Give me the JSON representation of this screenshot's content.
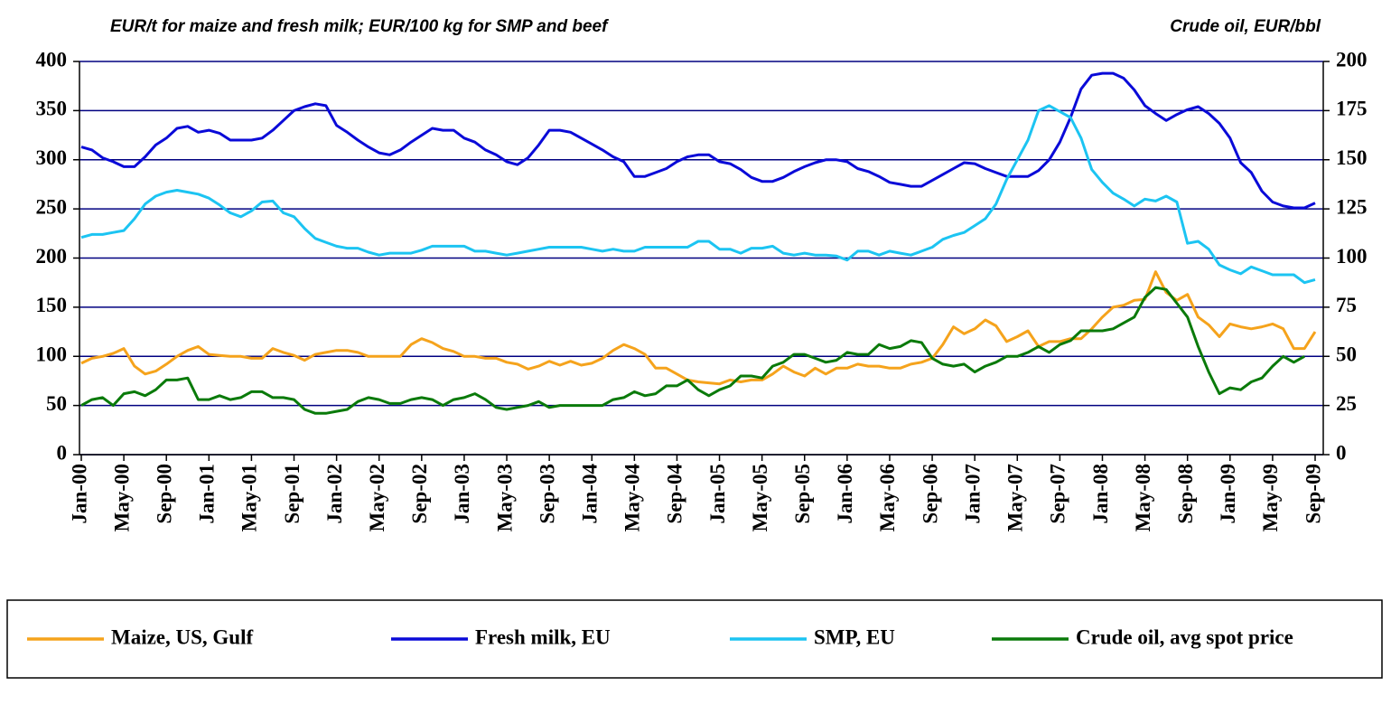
{
  "chart_data": {
    "type": "line",
    "left_axis_label": "EUR/t for maize and fresh milk; EUR/100 kg for SMP and beef",
    "right_axis_label": "Crude oil, EUR/bbl",
    "categories": [
      "Jan-00",
      null,
      null,
      null,
      "May-00",
      null,
      null,
      null,
      "Sep-00",
      null,
      null,
      null,
      "Jan-01",
      null,
      null,
      null,
      "May-01",
      null,
      null,
      null,
      "Sep-01",
      null,
      null,
      null,
      "Jan-02",
      null,
      null,
      null,
      "May-02",
      null,
      null,
      null,
      "Sep-02",
      null,
      null,
      null,
      "Jan-03",
      null,
      null,
      null,
      "May-03",
      null,
      null,
      null,
      "Sep-03",
      null,
      null,
      null,
      "Jan-04",
      null,
      null,
      null,
      "May-04",
      null,
      null,
      null,
      "Sep-04",
      null,
      null,
      null,
      "Jan-05",
      null,
      null,
      null,
      "May-05",
      null,
      null,
      null,
      "Sep-05",
      null,
      null,
      null,
      "Jan-06",
      null,
      null,
      null,
      "May-06",
      null,
      null,
      null,
      "Sep-06",
      null,
      null,
      null,
      "Jan-07",
      null,
      null,
      null,
      "May-07",
      null,
      null,
      null,
      "Sep-07",
      null,
      null,
      null,
      "Jan-08",
      null,
      null,
      null,
      "May-08",
      null,
      null,
      null,
      "Sep-08",
      null,
      null,
      null,
      "Jan-09",
      null,
      null,
      null,
      "May-09",
      null,
      null,
      null,
      "Sep-09"
    ],
    "ylim": [
      0,
      400
    ],
    "yticks": [
      0,
      50,
      100,
      150,
      200,
      250,
      300,
      350,
      400
    ],
    "y2lim": [
      0,
      200
    ],
    "y2ticks": [
      0,
      25,
      50,
      75,
      100,
      125,
      150,
      175,
      200
    ],
    "grid": true,
    "legend": "bottom",
    "series": [
      {
        "name": "Maize, US, Gulf",
        "color": "#f5a31c",
        "values": [
          93,
          98,
          100,
          103,
          108,
          90,
          82,
          85,
          92,
          100,
          106,
          110,
          102,
          101,
          100,
          100,
          98,
          98,
          108,
          104,
          101,
          96,
          102,
          104,
          106,
          106,
          104,
          100,
          100,
          100,
          100,
          112,
          118,
          114,
          108,
          105,
          100,
          100,
          98,
          98,
          94,
          92,
          87,
          90,
          95,
          91,
          95,
          91,
          93,
          98,
          106,
          112,
          108,
          102,
          88,
          88,
          82,
          76,
          74,
          73,
          72,
          76,
          74,
          76,
          76,
          82,
          90,
          84,
          80,
          88,
          82,
          88,
          88,
          92,
          90,
          90,
          88,
          88,
          92,
          94,
          98,
          112,
          130,
          123,
          128,
          137,
          131,
          115,
          120,
          126,
          110,
          115,
          115,
          118,
          118,
          128,
          140,
          150,
          152,
          157,
          158,
          186,
          165,
          157,
          163,
          140,
          132,
          120,
          133,
          130,
          128,
          130,
          133,
          128,
          108,
          108,
          125
        ]
      },
      {
        "name": "Fresh milk, EU",
        "color": "#0a0ad8",
        "values": [
          313,
          310,
          302,
          298,
          293,
          293,
          303,
          315,
          322,
          332,
          334,
          328,
          330,
          327,
          320,
          320,
          320,
          322,
          330,
          340,
          350,
          354,
          357,
          355,
          335,
          328,
          320,
          313,
          307,
          305,
          310,
          318,
          325,
          332,
          330,
          330,
          322,
          318,
          310,
          305,
          298,
          295,
          302,
          315,
          330,
          330,
          328,
          322,
          316,
          310,
          303,
          298,
          283,
          283,
          287,
          291,
          298,
          303,
          305,
          305,
          298,
          296,
          290,
          282,
          278,
          278,
          282,
          288,
          293,
          297,
          300,
          300,
          298,
          291,
          288,
          283,
          277,
          275,
          273,
          273,
          279,
          285,
          291,
          297,
          296,
          291,
          287,
          283,
          283,
          283,
          289,
          300,
          318,
          343,
          372,
          386,
          388,
          388,
          383,
          371,
          355,
          347,
          340,
          346,
          351,
          354,
          347,
          337,
          322,
          297,
          287,
          268,
          257,
          253,
          251,
          251,
          256
        ]
      },
      {
        "name": "SMP, EU",
        "color": "#1cc4f2",
        "values": [
          221,
          224,
          224,
          226,
          228,
          240,
          255,
          263,
          267,
          269,
          267,
          265,
          261,
          254,
          246,
          242,
          248,
          257,
          258,
          246,
          242,
          230,
          220,
          216,
          212,
          210,
          210,
          206,
          203,
          205,
          205,
          205,
          208,
          212,
          212,
          212,
          212,
          207,
          207,
          205,
          203,
          205,
          207,
          209,
          211,
          211,
          211,
          211,
          209,
          207,
          209,
          207,
          207,
          211,
          211,
          211,
          211,
          211,
          217,
          217,
          209,
          209,
          205,
          210,
          210,
          212,
          205,
          203,
          205,
          203,
          203,
          202,
          198,
          207,
          207,
          203,
          207,
          205,
          203,
          207,
          211,
          219,
          223,
          226,
          233,
          240,
          255,
          280,
          300,
          320,
          350,
          355,
          349,
          343,
          322,
          290,
          277,
          266,
          260,
          253,
          260,
          258,
          263,
          257,
          215,
          217,
          209,
          193,
          188,
          184,
          191,
          187,
          183,
          183,
          183,
          175,
          178
        ]
      },
      {
        "name": "Crude oil, avg spot price",
        "color": "#0a7a0a",
        "axis": "y2",
        "values": [
          25,
          28,
          29,
          25,
          31,
          32,
          30,
          33,
          38,
          38,
          39,
          28,
          28,
          30,
          28,
          29,
          32,
          32,
          29,
          29,
          28,
          23,
          21,
          21,
          22,
          23,
          27,
          29,
          28,
          26,
          26,
          28,
          29,
          28,
          25,
          28,
          29,
          31,
          28,
          24,
          23,
          24,
          25,
          27,
          24,
          25,
          25,
          25,
          25,
          25,
          28,
          29,
          32,
          30,
          31,
          35,
          35,
          38,
          33,
          30,
          33,
          35,
          40,
          40,
          39,
          45,
          47,
          51,
          51,
          49,
          47,
          48,
          52,
          51,
          51,
          56,
          54,
          55,
          58,
          57,
          49,
          46,
          45,
          46,
          42,
          45,
          47,
          50,
          50,
          52,
          55,
          52,
          56,
          58,
          63,
          63,
          63,
          64,
          67,
          70,
          80,
          85,
          84,
          77,
          70,
          55,
          42,
          31,
          34,
          33,
          37,
          39,
          45,
          50,
          47,
          50,
          null
        ]
      }
    ]
  }
}
